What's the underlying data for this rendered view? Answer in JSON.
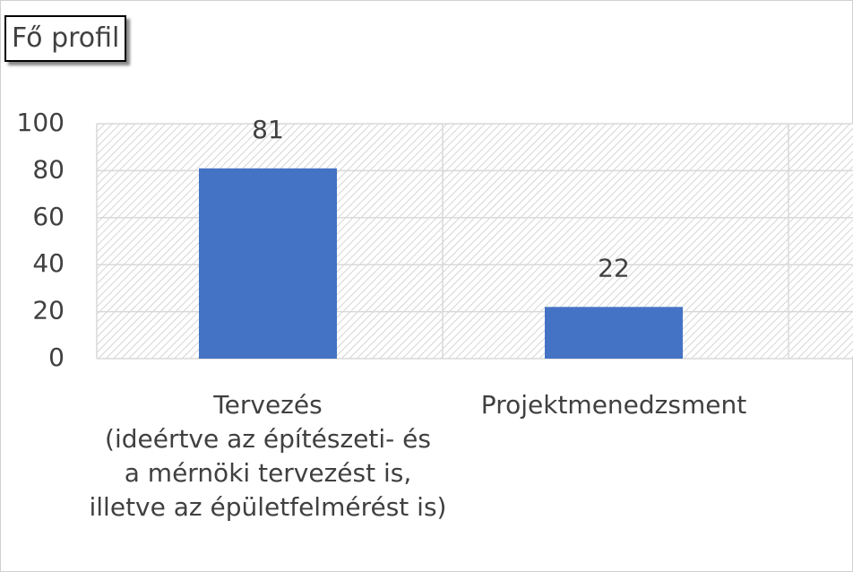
{
  "chart_data": {
    "type": "bar",
    "title": "Fő profil",
    "categories": [
      "Tervezés\n(ideértve az építészeti- és\na mérnöki tervezést is,\nilletve az épületfelmérést is)",
      "Projektmenedzsment"
    ],
    "values": [
      81,
      22
    ],
    "color": "#4472c4",
    "ylim": [
      0,
      100
    ],
    "yticks": [
      0,
      20,
      40,
      60,
      80,
      100
    ],
    "grid": true
  }
}
